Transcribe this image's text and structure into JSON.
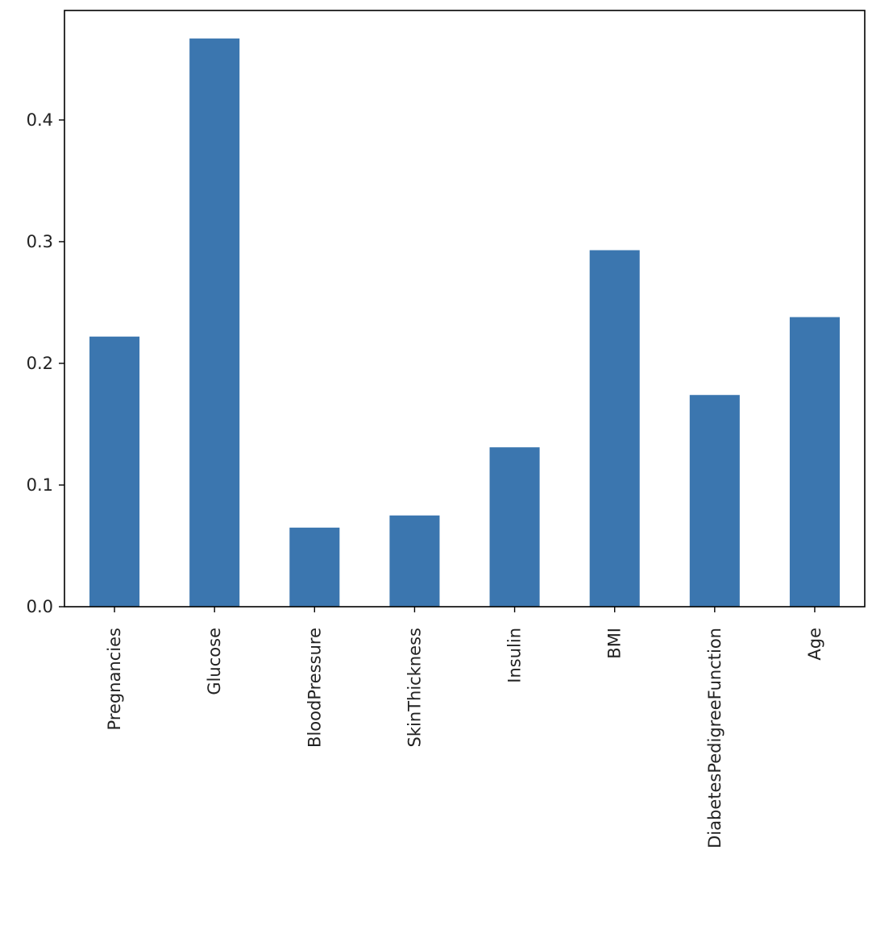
{
  "chart_data": {
    "type": "bar",
    "title": "",
    "xlabel": "",
    "ylabel": "",
    "categories": [
      "Pregnancies",
      "Glucose",
      "BloodPressure",
      "SkinThickness",
      "Insulin",
      "BMI",
      "DiabetesPedigreeFunction",
      "Age"
    ],
    "values": [
      0.222,
      0.467,
      0.065,
      0.075,
      0.131,
      0.293,
      0.174,
      0.238
    ],
    "ylim": [
      0,
      0.49
    ],
    "yticks": [
      0.0,
      0.1,
      0.2,
      0.3,
      0.4
    ],
    "ytick_labels": [
      "0.0",
      "0.1",
      "0.2",
      "0.3",
      "0.4"
    ],
    "grid": false,
    "legend": "none",
    "bar_color": "#3b76af"
  }
}
